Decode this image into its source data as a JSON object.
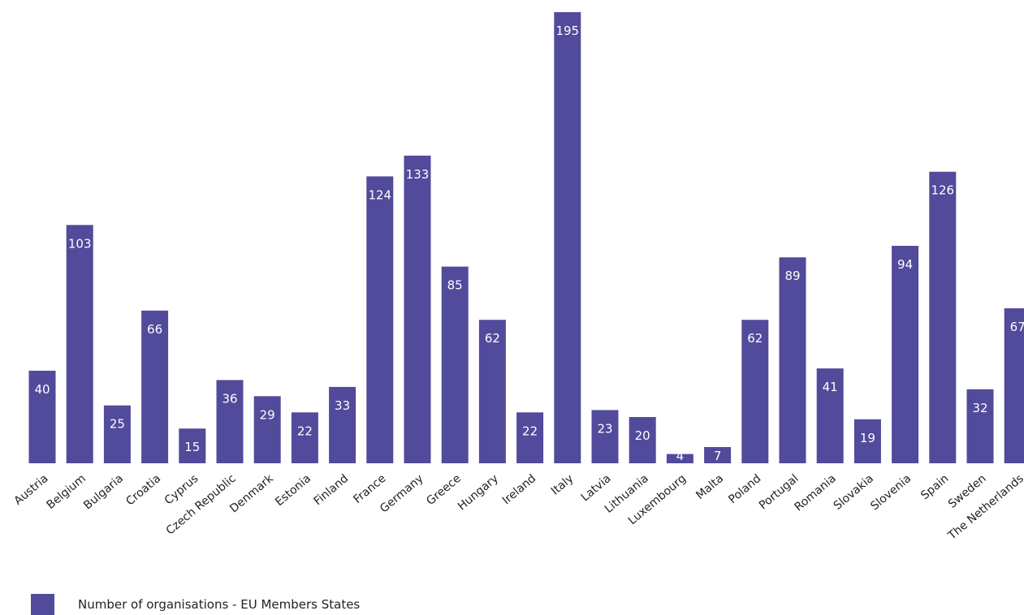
{
  "chart_data": {
    "type": "bar",
    "categories": [
      "Austria",
      "Belgium",
      "Bulgaria",
      "Croatia",
      "Cyprus",
      "Czech Republic",
      "Denmark",
      "Estonia",
      "Finland",
      "France",
      "Germany",
      "Greece",
      "Hungary",
      "Ireland",
      "Italy",
      "Latvia",
      "Lithuania",
      "Luxembourg",
      "Malta",
      "Poland",
      "Portugal",
      "Romania",
      "Slovakia",
      "Slovenia",
      "Spain",
      "Sweden",
      "The Netherlands"
    ],
    "series": [
      {
        "name": "Number of organisations - EU Members States",
        "values": [
          40,
          103,
          25,
          66,
          15,
          36,
          29,
          22,
          33,
          124,
          133,
          85,
          62,
          22,
          195,
          23,
          20,
          4,
          7,
          62,
          89,
          41,
          19,
          94,
          126,
          32,
          67
        ]
      }
    ],
    "value_labels": [
      "40",
      "103",
      "25",
      "66",
      "15",
      "36",
      "29",
      "22",
      "33",
      "124",
      "133",
      "85",
      "62",
      "22",
      "195",
      "23",
      "20",
      "4",
      "7",
      "62",
      "89",
      "41",
      "19",
      "94",
      "126",
      "32",
      "67"
    ],
    "title": "",
    "xlabel": "",
    "ylabel": "",
    "ylim": [
      0,
      195
    ],
    "grid": false,
    "legend_position": "bottom-left",
    "colors": {
      "bar": "#524a9a"
    }
  }
}
